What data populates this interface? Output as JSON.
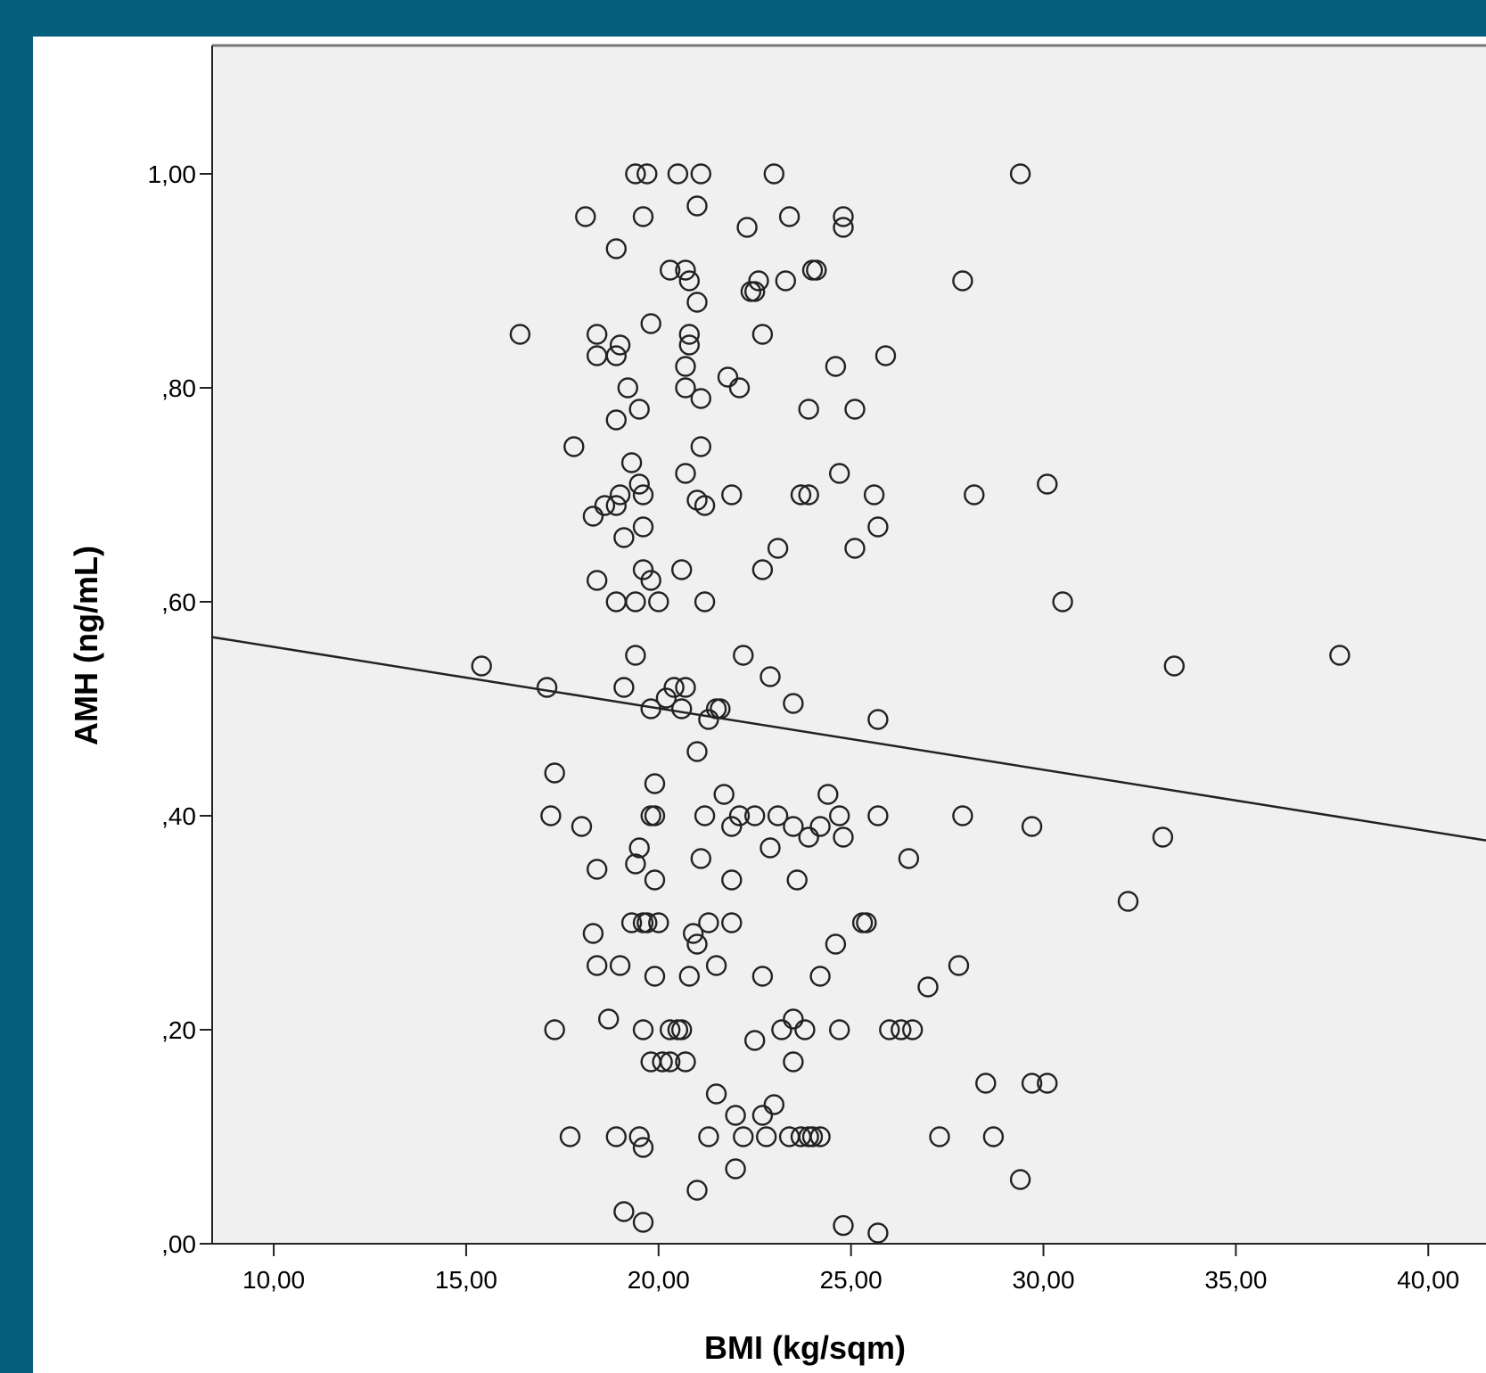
{
  "chart_data": {
    "type": "scatter",
    "title": "",
    "xlabel": "BMI (kg/sqm)",
    "ylabel": "AMH (ng/mL)",
    "xlim": [
      8.4,
      41.5
    ],
    "ylim": [
      0,
      1.12
    ],
    "x_ticks": [
      10,
      15,
      20,
      25,
      30,
      35,
      40
    ],
    "x_tick_labels": [
      "10,00",
      "15,00",
      "20,00",
      "25,00",
      "30,00",
      "35,00",
      "40,00"
    ],
    "y_ticks": [
      0,
      0.2,
      0.4,
      0.6,
      0.8,
      1.0
    ],
    "y_tick_labels": [
      ",00",
      ",20",
      ",40",
      ",60",
      ",80",
      "1,00"
    ],
    "grid": false,
    "legend": "none",
    "colors": {
      "plot_background": "#f0f0f0",
      "marker_stroke": "#222222",
      "fit_line": "#222222",
      "frame": "#055f7c"
    },
    "fit_line": {
      "x": [
        8.4,
        41.5
      ],
      "y": [
        0.567,
        0.377
      ]
    },
    "points": [
      [
        19.4,
        1.0
      ],
      [
        19.7,
        1.0
      ],
      [
        20.5,
        1.0
      ],
      [
        21.1,
        1.0
      ],
      [
        23.0,
        1.0
      ],
      [
        29.4,
        1.0
      ],
      [
        18.1,
        0.96
      ],
      [
        19.6,
        0.96
      ],
      [
        21.0,
        0.97
      ],
      [
        23.4,
        0.96
      ],
      [
        24.8,
        0.96
      ],
      [
        24.8,
        0.95
      ],
      [
        22.3,
        0.95
      ],
      [
        18.9,
        0.93
      ],
      [
        20.3,
        0.91
      ],
      [
        20.7,
        0.91
      ],
      [
        24.0,
        0.91
      ],
      [
        24.1,
        0.91
      ],
      [
        20.8,
        0.9
      ],
      [
        23.3,
        0.9
      ],
      [
        22.6,
        0.9
      ],
      [
        27.9,
        0.9
      ],
      [
        22.5,
        0.89
      ],
      [
        22.4,
        0.89
      ],
      [
        21.0,
        0.88
      ],
      [
        16.4,
        0.85
      ],
      [
        18.4,
        0.85
      ],
      [
        19.8,
        0.86
      ],
      [
        20.8,
        0.85
      ],
      [
        22.7,
        0.85
      ],
      [
        19.0,
        0.84
      ],
      [
        20.8,
        0.84
      ],
      [
        18.4,
        0.83
      ],
      [
        18.9,
        0.83
      ],
      [
        25.9,
        0.83
      ],
      [
        20.7,
        0.82
      ],
      [
        24.6,
        0.82
      ],
      [
        21.8,
        0.81
      ],
      [
        19.2,
        0.8
      ],
      [
        20.7,
        0.8
      ],
      [
        22.1,
        0.8
      ],
      [
        21.1,
        0.79
      ],
      [
        19.5,
        0.78
      ],
      [
        23.9,
        0.78
      ],
      [
        25.1,
        0.78
      ],
      [
        18.9,
        0.77
      ],
      [
        17.8,
        0.745
      ],
      [
        21.1,
        0.745
      ],
      [
        19.3,
        0.73
      ],
      [
        20.7,
        0.72
      ],
      [
        24.7,
        0.72
      ],
      [
        19.5,
        0.71
      ],
      [
        30.1,
        0.71
      ],
      [
        19.0,
        0.7
      ],
      [
        19.6,
        0.7
      ],
      [
        21.9,
        0.7
      ],
      [
        23.7,
        0.7
      ],
      [
        23.9,
        0.7
      ],
      [
        25.6,
        0.7
      ],
      [
        28.2,
        0.7
      ],
      [
        18.6,
        0.69
      ],
      [
        18.9,
        0.69
      ],
      [
        21.0,
        0.695
      ],
      [
        21.2,
        0.69
      ],
      [
        18.3,
        0.68
      ],
      [
        19.6,
        0.67
      ],
      [
        25.7,
        0.67
      ],
      [
        19.1,
        0.66
      ],
      [
        23.1,
        0.65
      ],
      [
        25.1,
        0.65
      ],
      [
        19.6,
        0.63
      ],
      [
        20.6,
        0.63
      ],
      [
        22.7,
        0.63
      ],
      [
        18.4,
        0.62
      ],
      [
        19.8,
        0.62
      ],
      [
        18.9,
        0.6
      ],
      [
        19.4,
        0.6
      ],
      [
        20.0,
        0.6
      ],
      [
        21.2,
        0.6
      ],
      [
        30.5,
        0.6
      ],
      [
        15.4,
        0.54
      ],
      [
        19.4,
        0.55
      ],
      [
        22.2,
        0.55
      ],
      [
        33.4,
        0.54
      ],
      [
        37.7,
        0.55
      ],
      [
        22.9,
        0.53
      ],
      [
        17.1,
        0.52
      ],
      [
        19.1,
        0.52
      ],
      [
        20.4,
        0.52
      ],
      [
        20.7,
        0.52
      ],
      [
        20.2,
        0.51
      ],
      [
        23.5,
        0.505
      ],
      [
        19.8,
        0.5
      ],
      [
        20.6,
        0.5
      ],
      [
        21.5,
        0.5
      ],
      [
        21.6,
        0.5
      ],
      [
        21.3,
        0.49
      ],
      [
        25.7,
        0.49
      ],
      [
        21.0,
        0.46
      ],
      [
        17.3,
        0.44
      ],
      [
        19.9,
        0.43
      ],
      [
        21.7,
        0.42
      ],
      [
        24.4,
        0.42
      ],
      [
        17.2,
        0.4
      ],
      [
        19.8,
        0.4
      ],
      [
        19.9,
        0.4
      ],
      [
        21.2,
        0.4
      ],
      [
        22.1,
        0.4
      ],
      [
        22.5,
        0.4
      ],
      [
        23.1,
        0.4
      ],
      [
        24.7,
        0.4
      ],
      [
        25.7,
        0.4
      ],
      [
        27.9,
        0.4
      ],
      [
        18.0,
        0.39
      ],
      [
        21.9,
        0.39
      ],
      [
        23.5,
        0.39
      ],
      [
        24.2,
        0.39
      ],
      [
        29.7,
        0.39
      ],
      [
        23.9,
        0.38
      ],
      [
        24.8,
        0.38
      ],
      [
        33.1,
        0.38
      ],
      [
        19.5,
        0.37
      ],
      [
        22.9,
        0.37
      ],
      [
        19.4,
        0.355
      ],
      [
        18.4,
        0.35
      ],
      [
        21.1,
        0.36
      ],
      [
        26.5,
        0.36
      ],
      [
        19.9,
        0.34
      ],
      [
        21.9,
        0.34
      ],
      [
        23.6,
        0.34
      ],
      [
        32.2,
        0.32
      ],
      [
        19.3,
        0.3
      ],
      [
        19.6,
        0.3
      ],
      [
        19.7,
        0.3
      ],
      [
        20.0,
        0.3
      ],
      [
        21.3,
        0.3
      ],
      [
        21.9,
        0.3
      ],
      [
        25.3,
        0.3
      ],
      [
        25.4,
        0.3
      ],
      [
        18.3,
        0.29
      ],
      [
        20.9,
        0.29
      ],
      [
        21.0,
        0.28
      ],
      [
        24.6,
        0.28
      ],
      [
        18.4,
        0.26
      ],
      [
        19.0,
        0.26
      ],
      [
        21.5,
        0.26
      ],
      [
        27.8,
        0.26
      ],
      [
        19.9,
        0.25
      ],
      [
        20.8,
        0.25
      ],
      [
        22.7,
        0.25
      ],
      [
        24.2,
        0.25
      ],
      [
        27.0,
        0.24
      ],
      [
        18.7,
        0.21
      ],
      [
        23.5,
        0.21
      ],
      [
        17.3,
        0.2
      ],
      [
        19.6,
        0.2
      ],
      [
        20.3,
        0.2
      ],
      [
        20.5,
        0.2
      ],
      [
        20.6,
        0.2
      ],
      [
        23.2,
        0.2
      ],
      [
        23.8,
        0.2
      ],
      [
        24.7,
        0.2
      ],
      [
        26.0,
        0.2
      ],
      [
        26.3,
        0.2
      ],
      [
        26.6,
        0.2
      ],
      [
        22.5,
        0.19
      ],
      [
        19.8,
        0.17
      ],
      [
        20.1,
        0.17
      ],
      [
        20.3,
        0.17
      ],
      [
        20.7,
        0.17
      ],
      [
        23.5,
        0.17
      ],
      [
        28.5,
        0.15
      ],
      [
        29.7,
        0.15
      ],
      [
        30.1,
        0.15
      ],
      [
        21.5,
        0.14
      ],
      [
        23.0,
        0.13
      ],
      [
        22.0,
        0.12
      ],
      [
        22.7,
        0.12
      ],
      [
        17.7,
        0.1
      ],
      [
        18.9,
        0.1
      ],
      [
        19.5,
        0.1
      ],
      [
        21.3,
        0.1
      ],
      [
        22.2,
        0.1
      ],
      [
        22.8,
        0.1
      ],
      [
        23.4,
        0.1
      ],
      [
        23.7,
        0.1
      ],
      [
        23.9,
        0.1
      ],
      [
        24.0,
        0.1
      ],
      [
        24.2,
        0.1
      ],
      [
        27.3,
        0.1
      ],
      [
        28.7,
        0.1
      ],
      [
        19.6,
        0.09
      ],
      [
        22.0,
        0.07
      ],
      [
        29.4,
        0.06
      ],
      [
        21.0,
        0.05
      ],
      [
        19.1,
        0.03
      ],
      [
        19.6,
        0.02
      ],
      [
        24.8,
        0.017
      ],
      [
        25.7,
        0.01
      ]
    ]
  }
}
